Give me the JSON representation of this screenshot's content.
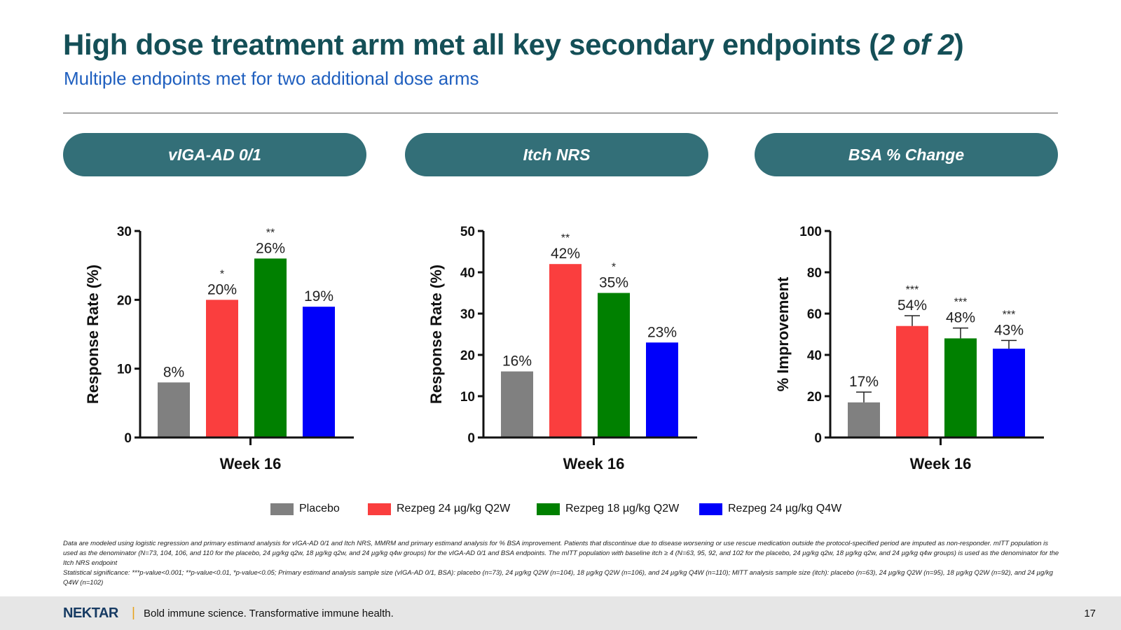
{
  "header": {
    "title_main": "High dose treatment arm met all key secondary endpoints (",
    "title_italic": "2 of 2",
    "title_close": ")",
    "subtitle": "Multiple endpoints met for two additional dose arms"
  },
  "colors": {
    "teal_title": "#144f57",
    "pill_bg": "#336f78",
    "subtitle_blue": "#1f5fbf",
    "placebo": "#808080",
    "rezpeg_24_q2w": "#fa3e3e",
    "rezpeg_18_q2w": "#008000",
    "rezpeg_24_q4w": "#0000fa"
  },
  "chart_data": [
    {
      "type": "bar",
      "panel_title": "vIGA-AD 0/1",
      "ylabel": "Response Rate (%)",
      "xlabel": "Week 16",
      "ylim": [
        0,
        30
      ],
      "yticks": [
        0,
        10,
        20,
        30
      ],
      "categories": [
        "Placebo",
        "Rezpeg 24 µg/kg Q2W",
        "Rezpeg 18 µg/kg Q2W",
        "Rezpeg 24 µg/kg Q4W"
      ],
      "values": [
        8,
        20,
        26,
        19
      ],
      "labels": [
        "8%",
        "20%",
        "26%",
        "19%"
      ],
      "significance": [
        "",
        "*",
        "**",
        ""
      ]
    },
    {
      "type": "bar",
      "panel_title": "Itch NRS",
      "ylabel": "Response Rate (%)",
      "xlabel": "Week 16",
      "ylim": [
        0,
        50
      ],
      "yticks": [
        0,
        10,
        20,
        30,
        40,
        50
      ],
      "categories": [
        "Placebo",
        "Rezpeg 24 µg/kg Q2W",
        "Rezpeg 18 µg/kg Q2W",
        "Rezpeg 24 µg/kg Q4W"
      ],
      "values": [
        16,
        42,
        35,
        23
      ],
      "labels": [
        "16%",
        "42%",
        "35%",
        "23%"
      ],
      "significance": [
        "",
        "**",
        "*",
        ""
      ]
    },
    {
      "type": "bar",
      "panel_title": "BSA % Change",
      "ylabel": "% Improvement",
      "xlabel": "Week 16",
      "ylim": [
        0,
        100
      ],
      "yticks": [
        0,
        20,
        40,
        60,
        80,
        100
      ],
      "categories": [
        "Placebo",
        "Rezpeg 24 µg/kg Q2W",
        "Rezpeg 18 µg/kg Q2W",
        "Rezpeg 24 µg/kg Q4W"
      ],
      "values": [
        17,
        54,
        48,
        43
      ],
      "error_upper": [
        22,
        59,
        53,
        47
      ],
      "labels": [
        "17%",
        "54%",
        "48%",
        "43%"
      ],
      "significance": [
        "",
        "***",
        "***",
        "***"
      ]
    }
  ],
  "legend": [
    {
      "label": "Placebo",
      "color_key": "placebo"
    },
    {
      "label": "Rezpeg 24 µg/kg Q2W",
      "color_key": "rezpeg_24_q2w"
    },
    {
      "label": "Rezpeg 18 µg/kg Q2W",
      "color_key": "rezpeg_18_q2w"
    },
    {
      "label": "Rezpeg 24 µg/kg Q4W",
      "color_key": "rezpeg_24_q4w"
    }
  ],
  "footnotes": {
    "line1": "Data are modeled using logistic regression and primary estimand analysis for vIGA-AD 0/1 and Itch NRS, MMRM and primary estimand analysis for % BSA improvement. Patients that discontinue due to disease worsening or use rescue medication outside the protocol-specified period are imputed as non-responder. mITT population is used as the denominator (N=73, 104, 106, and 110 for the placebo, 24 µg/kg q2w, 18 µg/kg q2w, and 24 µg/kg q4w groups) for the vIGA-AD 0/1 and BSA endpoints. The mITT population with baseline itch ≥ 4 (N=63, 95, 92, and 102 for the placebo, 24 µg/kg q2w, 18 µg/kg q2w, and 24 µg/kg q4w groups) is used as the denominator for the Itch NRS endpoint",
    "line2": "Statistical significance: ***p-value<0.001; **p-value<0.01, *p-value<0.05; Primary estimand analysis sample size (vIGA-AD 0/1, BSA): placebo (n=73), 24 µg/kg Q2W (n=104), 18 µg/kg Q2W (n=106), and 24 µg/kg Q4W (n=110); MITT analysis sample size (itch): placebo (n=63), 24 µg/kg Q2W (n=95), 18 µg/kg Q2W (n=92), and 24 µg/kg Q4W (n=102)"
  },
  "footer": {
    "logo": "NEKTAR",
    "separator": "|",
    "tagline": "Bold immune science. Transformative immune health.",
    "page_number": "17"
  }
}
